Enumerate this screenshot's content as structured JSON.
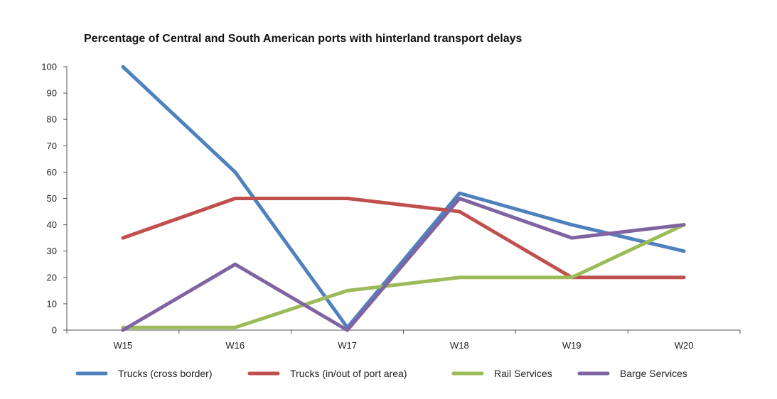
{
  "chart_data": {
    "type": "line",
    "title": "Percentage of Central and South American ports with hinterland transport delays",
    "xlabel": "",
    "ylabel": "",
    "categories": [
      "W15",
      "W16",
      "W17",
      "W18",
      "W19",
      "W20"
    ],
    "ylim": [
      0,
      100
    ],
    "yticks": [
      0,
      10,
      20,
      30,
      40,
      50,
      60,
      70,
      80,
      90,
      100
    ],
    "grid": false,
    "legend": "bottom",
    "series": [
      {
        "name": "Trucks (cross border)",
        "color": "#4f81bd",
        "values": [
          100,
          60,
          1,
          52,
          40,
          30
        ]
      },
      {
        "name": "Trucks (in/out of port area)",
        "color": "#c0504d",
        "values": [
          35,
          50,
          50,
          45,
          20,
          20
        ]
      },
      {
        "name": "Rail Services",
        "color": "#9bbb59",
        "values": [
          1,
          1,
          15,
          20,
          20,
          40
        ]
      },
      {
        "name": "Barge Services",
        "color": "#8064a2",
        "values": [
          0,
          25,
          0,
          50,
          35,
          40
        ]
      }
    ]
  }
}
